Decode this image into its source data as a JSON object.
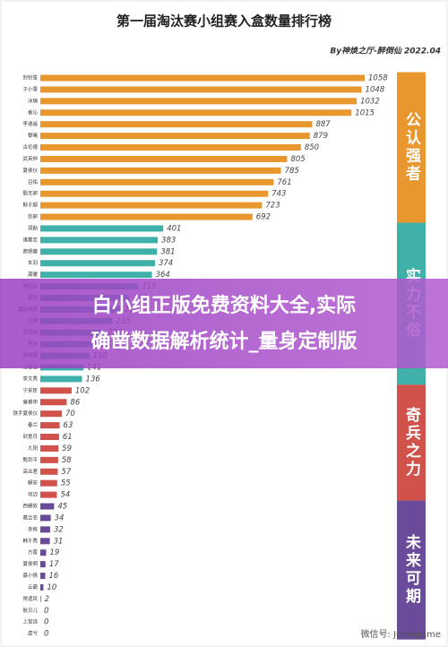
{
  "chart_data": {
    "type": "bar",
    "orientation": "horizontal",
    "title": "第一届淘汰赛小组赛入盒数量排行榜",
    "subtitle": "By神焕之厅-醉倒仙 2022.04",
    "groups": [
      {
        "name": "公认强者",
        "color": "#e8962e",
        "categories": [
          "封铃笙",
          "于小雪",
          "冰璃",
          "香沁",
          "李逍遥",
          "黎曦",
          "古伦德",
          "武英仲",
          "夏侯仪",
          "召佑",
          "殷无邪",
          "鲜于超",
          "剑邪"
        ],
        "values": [
          1058,
          1048,
          1032,
          1015,
          887,
          879,
          850,
          805,
          785,
          761,
          743,
          723,
          692
        ]
      },
      {
        "name": "实力不俗",
        "color": "#3fb1a8",
        "categories": [
          "洞助",
          "诸葛宏",
          "燕明蓉",
          "玄羽",
          "龚暖",
          "林月如",
          "紫萱",
          "慕容紫英",
          "龙葵",
          "李忆如",
          "景天",
          "风晴雪",
          "上官玉",
          "李文秀"
        ],
        "values": [
          401,
          383,
          381,
          374,
          364,
          319,
          290,
          262,
          235,
          208,
          180,
          160,
          141,
          136
        ]
      },
      {
        "name": "奇兵之力",
        "color": "#d0524a",
        "categories": [
          "宁采臣",
          "皇甫申",
          "铁手夏侯仪",
          "春兰",
          "封意月",
          "九阳",
          "殷剑平",
          "高业君",
          "解安",
          "司迈"
        ],
        "values": [
          102,
          86,
          70,
          63,
          61,
          59,
          58,
          57,
          55,
          54
        ]
      },
      {
        "name": "未来可期",
        "color": "#6a4a9a",
        "categories": [
          "西朝依",
          "葛云衣",
          "赤练",
          "韩千秀",
          "方晋",
          "夏侯明",
          "慕小倩",
          "云霸",
          "常遗凤",
          "航贝儿",
          "上官远",
          "虚兮"
        ],
        "values": [
          45,
          34,
          32,
          31,
          19,
          17,
          16,
          10,
          2,
          0,
          0,
          0
        ]
      }
    ]
  },
  "banner": {
    "lines": [
      "白小组正版免费资料大全,实际",
      "确凿数据解析统计_量身定制版"
    ]
  },
  "watermark": "微信号: Junlegame"
}
